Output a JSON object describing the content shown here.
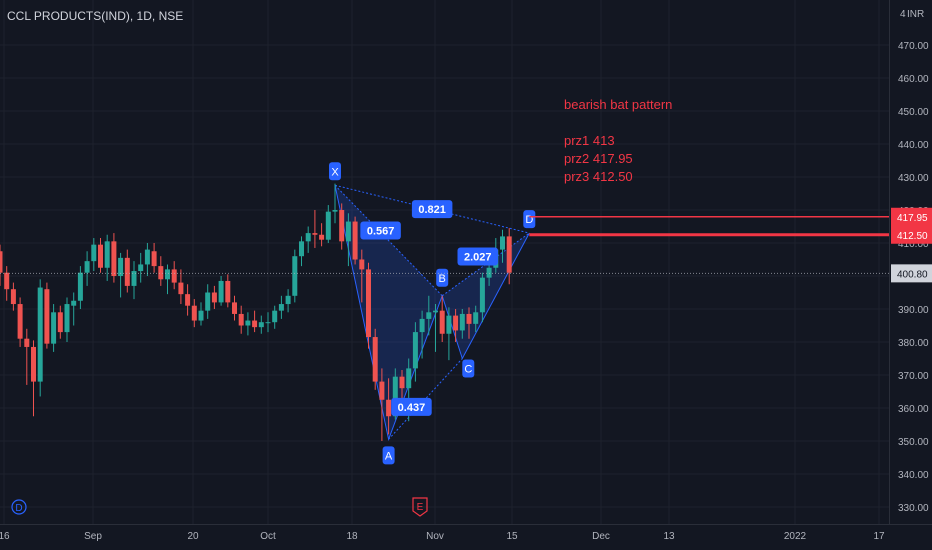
{
  "header": {
    "title": "CCL PRODUCTS(IND), 1D, NSE"
  },
  "currency": {
    "top_number": "4",
    "unit": "INR"
  },
  "annotation": {
    "heading": "bearish bat pattern",
    "lines": [
      "prz1 413",
      "prz2 417.95",
      "prz3 412.50"
    ]
  },
  "colors": {
    "up": "#26a69a",
    "down": "#ef5350",
    "pattern": "#2962ff",
    "prz": "#f23645",
    "last_price": "#b2b5be"
  },
  "chart_data": {
    "type": "candlestick",
    "title": "CCL PRODUCTS(IND), 1D, NSE",
    "ylim": [
      325,
      475
    ],
    "yticks": [
      "470.00",
      "460.00",
      "450.00",
      "440.00",
      "430.00",
      "420.00",
      "410.00",
      "400.00",
      "390.00",
      "380.00",
      "370.00",
      "360.00",
      "350.00",
      "340.00",
      "330.00"
    ],
    "xticks": [
      "16",
      "Sep",
      "20",
      "Oct",
      "18",
      "Nov",
      "15",
      "Dec",
      "13",
      "2022",
      "17"
    ],
    "last_price": {
      "label": "400.80",
      "value": 400.8
    },
    "prz_levels": [
      {
        "label": "417.95",
        "value": 417.95
      },
      {
        "label": "413.00",
        "value": 413.0
      },
      {
        "label": "412.50",
        "value": 412.5
      }
    ],
    "candles": [
      [
        407.5,
        409.5,
        397.0,
        401.0
      ],
      [
        401.0,
        403.0,
        392.5,
        396.0
      ],
      [
        396.0,
        398.0,
        389.5,
        391.5
      ],
      [
        391.5,
        393.5,
        378.5,
        381.0
      ],
      [
        381.0,
        384.0,
        367.0,
        378.5
      ],
      [
        378.5,
        380.5,
        357.5,
        368.0
      ],
      [
        368.0,
        399.0,
        363.5,
        396.5
      ],
      [
        396.0,
        398.0,
        378.0,
        379.5
      ],
      [
        379.5,
        391.5,
        377.0,
        389.0
      ],
      [
        389.0,
        391.0,
        381.0,
        383.0
      ],
      [
        383.0,
        393.5,
        380.0,
        391.5
      ],
      [
        391.0,
        395.0,
        385.0,
        392.5
      ],
      [
        392.5,
        403.0,
        390.0,
        401.0
      ],
      [
        401.0,
        407.5,
        397.0,
        404.5
      ],
      [
        404.5,
        411.5,
        401.5,
        409.5
      ],
      [
        409.5,
        411.5,
        401.0,
        402.5
      ],
      [
        402.5,
        412.5,
        398.5,
        410.5
      ],
      [
        410.5,
        413.0,
        398.0,
        400.0
      ],
      [
        400.0,
        407.0,
        393.5,
        405.5
      ],
      [
        405.5,
        408.0,
        395.0,
        397.0
      ],
      [
        397.0,
        404.5,
        393.0,
        401.5
      ],
      [
        401.5,
        407.0,
        398.0,
        403.5
      ],
      [
        403.5,
        410.0,
        400.0,
        408.0
      ],
      [
        407.5,
        410.0,
        401.0,
        403.0
      ],
      [
        403.0,
        406.0,
        397.0,
        399.0
      ],
      [
        399.0,
        403.5,
        394.5,
        402.0
      ],
      [
        402.0,
        404.5,
        396.0,
        398.0
      ],
      [
        398.0,
        402.0,
        391.5,
        394.5
      ],
      [
        394.5,
        397.5,
        388.0,
        391.0
      ],
      [
        391.0,
        393.0,
        384.5,
        386.5
      ],
      [
        386.5,
        392.0,
        385.0,
        389.5
      ],
      [
        389.5,
        397.5,
        387.0,
        395.0
      ],
      [
        395.0,
        397.0,
        390.0,
        392.0
      ],
      [
        392.0,
        400.0,
        391.0,
        398.5
      ],
      [
        398.5,
        400.5,
        390.5,
        392.0
      ],
      [
        392.0,
        394.0,
        386.5,
        388.5
      ],
      [
        388.5,
        391.0,
        382.5,
        385.0
      ],
      [
        385.0,
        389.0,
        382.0,
        386.5
      ],
      [
        386.5,
        389.5,
        383.0,
        384.5
      ],
      [
        384.5,
        388.0,
        382.5,
        386.0
      ],
      [
        386.0,
        389.0,
        383.0,
        386.0
      ],
      [
        386.0,
        391.0,
        384.0,
        389.5
      ],
      [
        389.5,
        394.0,
        387.0,
        391.5
      ],
      [
        391.5,
        396.0,
        389.0,
        394.0
      ],
      [
        394.0,
        408.0,
        392.0,
        406.0
      ],
      [
        406.0,
        412.0,
        403.0,
        410.5
      ],
      [
        410.5,
        415.0,
        407.0,
        413.0
      ],
      [
        413.0,
        420.0,
        408.5,
        412.5
      ],
      [
        412.5,
        416.0,
        409.0,
        411.0
      ],
      [
        411.0,
        421.5,
        410.0,
        419.5
      ],
      [
        419.5,
        428.0,
        416.0,
        420.0
      ],
      [
        420.0,
        422.0,
        408.0,
        410.5
      ],
      [
        410.5,
        419.0,
        403.0,
        416.5
      ],
      [
        416.5,
        418.0,
        403.5,
        405.0
      ],
      [
        405.0,
        408.0,
        392.0,
        402.0
      ],
      [
        402.0,
        404.0,
        378.0,
        381.5
      ],
      [
        381.5,
        384.0,
        365.5,
        368.0
      ],
      [
        368.0,
        372.0,
        350.0,
        362.5
      ],
      [
        362.5,
        369.0,
        352.0,
        357.5
      ],
      [
        357.5,
        372.0,
        356.5,
        369.5
      ],
      [
        369.5,
        371.5,
        362.0,
        366.0
      ],
      [
        366.0,
        375.0,
        356.0,
        372.0
      ],
      [
        372.0,
        386.0,
        368.0,
        383.0
      ],
      [
        383.0,
        389.5,
        375.0,
        387.0
      ],
      [
        387.0,
        394.0,
        382.0,
        389.0
      ],
      [
        389.0,
        391.5,
        377.0,
        389.5
      ],
      [
        389.5,
        394.0,
        380.0,
        382.5
      ],
      [
        382.5,
        390.5,
        374.5,
        388.0
      ],
      [
        388.0,
        390.0,
        380.0,
        383.5
      ],
      [
        383.5,
        390.0,
        381.0,
        388.5
      ],
      [
        388.5,
        390.5,
        381.0,
        385.5
      ],
      [
        385.5,
        391.0,
        383.0,
        389.0
      ],
      [
        389.0,
        401.0,
        386.0,
        399.5
      ],
      [
        399.5,
        407.0,
        397.0,
        402.5
      ],
      [
        402.5,
        411.5,
        401.0,
        408.0
      ],
      [
        408.0,
        414.0,
        404.0,
        412.0
      ],
      [
        412.0,
        414.5,
        397.5,
        401.0
      ]
    ],
    "harmonic_pattern": {
      "name": "bearish bat pattern",
      "points": [
        {
          "label": "X",
          "value": 427.5
        },
        {
          "label": "A",
          "value": 350.5
        },
        {
          "label": "B",
          "value": 394.0
        },
        {
          "label": "C",
          "value": 375.0
        },
        {
          "label": "D",
          "value": 413.0
        }
      ],
      "ratios": [
        "0.567",
        "0.437",
        "2.027",
        "0.821"
      ]
    },
    "markers": [
      {
        "type": "dividend",
        "label": "D"
      },
      {
        "type": "earnings",
        "label": "E"
      }
    ]
  }
}
